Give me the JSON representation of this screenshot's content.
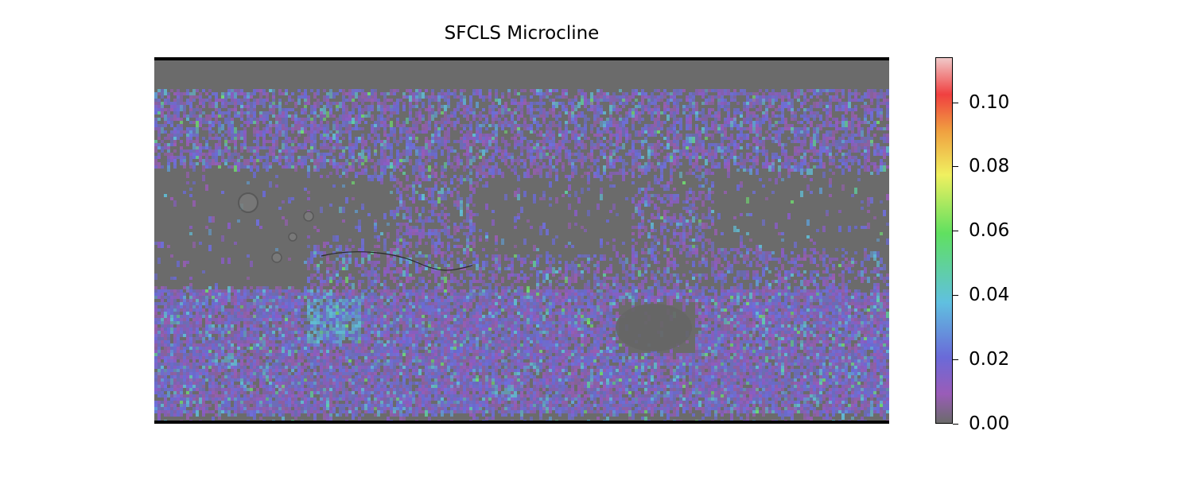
{
  "title": "SFCLS Microcline",
  "colorbar": {
    "ticks": [
      "0.00",
      "0.02",
      "0.04",
      "0.06",
      "0.08",
      "0.10"
    ],
    "min": 0.0,
    "max": 0.114,
    "colors": [
      "#6b6b6b",
      "#a060c0",
      "#6a6ad8",
      "#60c0e0",
      "#60e060",
      "#f0f060",
      "#f0a040",
      "#f04040",
      "#f0c0c0"
    ]
  },
  "map": {
    "base_color": "#6b6b6b",
    "abundance_typical": [
      0.0,
      0.03
    ],
    "abundance_max_visible": 0.06
  }
}
